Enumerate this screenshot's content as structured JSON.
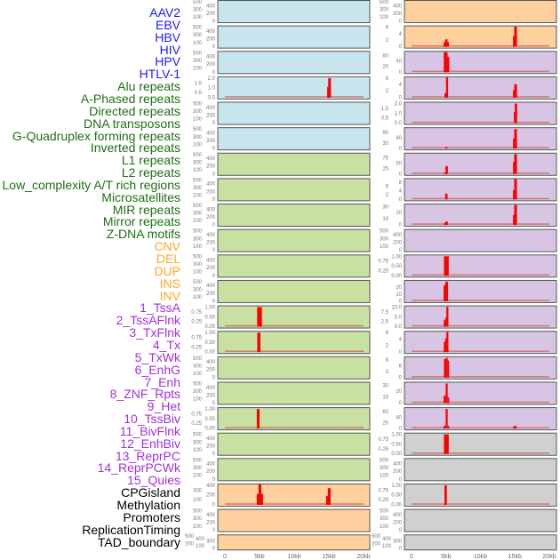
{
  "colors": {
    "virus": "#1a1aff",
    "repeat": "#1e6e14",
    "sv": "#ffa826",
    "chromhmm": "#a030e0",
    "other": "#000000",
    "bar": "#ff0000",
    "baseline": "#d06060"
  },
  "labels": [
    {
      "text": "AAV2",
      "group": "virus"
    },
    {
      "text": "EBV",
      "group": "virus"
    },
    {
      "text": "HBV",
      "group": "virus"
    },
    {
      "text": "HIV",
      "group": "virus"
    },
    {
      "text": "HPV",
      "group": "virus"
    },
    {
      "text": "HTLV-1",
      "group": "virus"
    },
    {
      "text": "Alu repeats",
      "group": "repeat"
    },
    {
      "text": "A-Phased repeats",
      "group": "repeat"
    },
    {
      "text": "Directed repeats",
      "group": "repeat"
    },
    {
      "text": "DNA transposons",
      "group": "repeat"
    },
    {
      "text": "G-Quadruplex forming repeats",
      "group": "repeat"
    },
    {
      "text": "Inverted repeats",
      "group": "repeat"
    },
    {
      "text": "L1 repeats",
      "group": "repeat"
    },
    {
      "text": "L2 repeats",
      "group": "repeat"
    },
    {
      "text": "Low_complexity A/T rich regions",
      "group": "repeat"
    },
    {
      "text": "Microsatellites",
      "group": "repeat"
    },
    {
      "text": "MIR repeats",
      "group": "repeat"
    },
    {
      "text": "Mirror repeats",
      "group": "repeat"
    },
    {
      "text": "Z-DNA motifs",
      "group": "repeat"
    },
    {
      "text": "CNV",
      "group": "sv"
    },
    {
      "text": "DEL",
      "group": "sv"
    },
    {
      "text": "DUP",
      "group": "sv"
    },
    {
      "text": "INS",
      "group": "sv"
    },
    {
      "text": "INV",
      "group": "sv"
    },
    {
      "text": "1_TssA",
      "group": "chromhmm"
    },
    {
      "text": "2_TssAFlnk",
      "group": "chromhmm"
    },
    {
      "text": "3_TxFlnk",
      "group": "chromhmm"
    },
    {
      "text": "4_Tx",
      "group": "chromhmm"
    },
    {
      "text": "5_TxWk",
      "group": "chromhmm"
    },
    {
      "text": "6_EnhG",
      "group": "chromhmm"
    },
    {
      "text": "7_Enh",
      "group": "chromhmm"
    },
    {
      "text": "8_ZNF_Rpts",
      "group": "chromhmm"
    },
    {
      "text": "9_Het",
      "group": "chromhmm"
    },
    {
      "text": "10_TssBiv",
      "group": "chromhmm"
    },
    {
      "text": "11_BivFlnk",
      "group": "chromhmm"
    },
    {
      "text": "12_EnhBiv",
      "group": "chromhmm"
    },
    {
      "text": "13_ReprPC",
      "group": "chromhmm"
    },
    {
      "text": "14_ReprPCWk",
      "group": "chromhmm"
    },
    {
      "text": "15_Quies",
      "group": "chromhmm"
    },
    {
      "text": "CPGisland",
      "group": "other"
    },
    {
      "text": "Methylation",
      "group": "other"
    },
    {
      "text": "Promoters",
      "group": "other"
    },
    {
      "text": "ReplicationTiming",
      "group": "other"
    },
    {
      "text": "TAD_boundary",
      "group": "other"
    }
  ],
  "chart_data": {
    "type": "bar",
    "xlabel": "",
    "xlim_kb": [
      -1,
      21
    ],
    "xticks": [
      "0",
      "5kb",
      "10kb",
      "15kb",
      "20kb"
    ],
    "xtick_values_kb": [
      0,
      5,
      10,
      15,
      20
    ],
    "backgrounds": {
      "blue": "#c8e4ec",
      "green": "#c8e0a2",
      "orange": "#fed09e",
      "purple": "#d7c5e3",
      "gray": "#d0d0d0"
    },
    "columns": [
      [
        {
          "bg": "blue",
          "ymax": 500,
          "yticks": [
            "0",
            "100",
            "200",
            "300",
            "400",
            "500"
          ],
          "bars": []
        },
        {
          "bg": "blue",
          "ymax": 500,
          "yticks": [
            "0",
            "100",
            "200",
            "300",
            "400",
            "500"
          ],
          "bars": []
        },
        {
          "bg": "blue",
          "ymax": 500,
          "yticks": [
            "0",
            "100",
            "200",
            "300",
            "400",
            "500"
          ],
          "bars": []
        },
        {
          "bg": "blue",
          "ymax": 2.0,
          "yticks": [
            "0.0",
            "0.5",
            "1.0",
            "1.5",
            "2.0"
          ],
          "bars": [
            [
              14.9,
              0.3,
              1.1
            ],
            [
              15.1,
              0.4,
              2.0
            ]
          ]
        },
        {
          "bg": "blue",
          "ymax": 500,
          "yticks": [
            "0",
            "100",
            "200",
            "300",
            "400",
            "500"
          ],
          "bars": []
        },
        {
          "bg": "blue",
          "ymax": 500,
          "yticks": [
            "0",
            "100",
            "200",
            "300",
            "400",
            "500"
          ],
          "bars": []
        },
        {
          "bg": "green",
          "ymax": 500,
          "yticks": [
            "0",
            "100",
            "200",
            "300",
            "400",
            "500"
          ],
          "bars": []
        },
        {
          "bg": "green",
          "ymax": 500,
          "yticks": [
            "0",
            "100",
            "200",
            "300",
            "400",
            "500"
          ],
          "bars": []
        },
        {
          "bg": "green",
          "ymax": 500,
          "yticks": [
            "0",
            "100",
            "200",
            "300",
            "400",
            "500"
          ],
          "bars": []
        },
        {
          "bg": "green",
          "ymax": 500,
          "yticks": [
            "0",
            "100",
            "200",
            "300",
            "400",
            "500"
          ],
          "bars": []
        },
        {
          "bg": "green",
          "ymax": 500,
          "yticks": [
            "0",
            "100",
            "200",
            "300",
            "400",
            "500"
          ],
          "bars": []
        },
        {
          "bg": "green",
          "ymax": 500,
          "yticks": [
            "0",
            "100",
            "200",
            "300",
            "400",
            "500"
          ],
          "bars": []
        },
        {
          "bg": "green",
          "ymax": 1.0,
          "yticks": [
            "0.00",
            "0.25",
            "0.50",
            "0.75",
            "1.00"
          ],
          "bars": [
            [
              5.0,
              0.7,
              1.0
            ]
          ]
        },
        {
          "bg": "green",
          "ymax": 1.0,
          "yticks": [
            "0.00",
            "0.25",
            "0.50",
            "0.75",
            "1.00"
          ],
          "bars": [
            [
              4.9,
              0.45,
              1.0
            ]
          ]
        },
        {
          "bg": "green",
          "ymax": 500,
          "yticks": [
            "0",
            "100",
            "200",
            "300",
            "400",
            "500"
          ],
          "bars": []
        },
        {
          "bg": "green",
          "ymax": 500,
          "yticks": [
            "0",
            "100",
            "200",
            "300",
            "400",
            "500"
          ],
          "bars": []
        },
        {
          "bg": "green",
          "ymax": 1.0,
          "yticks": [
            "0.00",
            "0.25",
            "0.50",
            "0.75",
            "1.00"
          ],
          "bars": [
            [
              4.8,
              0.4,
              1.0
            ]
          ]
        },
        {
          "bg": "green",
          "ymax": 500,
          "yticks": [
            "0",
            "100",
            "200",
            "300",
            "400",
            "500"
          ],
          "bars": []
        },
        {
          "bg": "green",
          "ymax": 500,
          "yticks": [
            "0",
            "100",
            "200",
            "300",
            "400",
            "500"
          ],
          "bars": []
        },
        {
          "bg": "orange",
          "ymax": 400,
          "yticks": [
            "0",
            "100",
            "200",
            "300",
            "400"
          ],
          "bars": [
            [
              4.75,
              0.3,
              220
            ],
            [
              5.05,
              0.4,
              420
            ],
            [
              5.35,
              0.3,
              220
            ],
            [
              14.75,
              0.3,
              180
            ],
            [
              15.05,
              0.4,
              340
            ]
          ]
        },
        {
          "bg": "orange",
          "ymax": 500,
          "yticks": [
            "0",
            "100",
            "200",
            "300",
            "400",
            "500"
          ],
          "bars": []
        },
        {
          "bg": "orange",
          "ymax": 500,
          "yticks": [
            "0",
            "100",
            "200",
            "300",
            "400",
            "500"
          ],
          "bars": []
        }
      ],
      [
        {
          "bg": "orange",
          "ymax": 500,
          "yticks": [
            "0",
            "100",
            "200",
            "300",
            "400",
            "500"
          ],
          "bars": []
        },
        {
          "bg": "orange",
          "ymax": 6,
          "yticks": [
            "0",
            "2",
            "4",
            "6"
          ],
          "bars": [
            [
              4.8,
              0.3,
              1.3
            ],
            [
              5.05,
              0.35,
              2.2
            ],
            [
              5.3,
              0.25,
              1.3
            ],
            [
              14.85,
              0.25,
              3.2
            ],
            [
              15.1,
              0.4,
              6.2
            ]
          ]
        },
        {
          "bg": "purple",
          "ymax": 70,
          "yticks": [
            "0",
            "20",
            "40",
            "60"
          ],
          "bars": [
            [
              4.95,
              0.55,
              72
            ],
            [
              5.35,
              0.25,
              55
            ]
          ]
        },
        {
          "bg": "purple",
          "ymax": 6,
          "yticks": [
            "0",
            "2",
            "4",
            "6"
          ],
          "bars": [
            [
              4.9,
              0.25,
              1.3
            ],
            [
              5.15,
              0.3,
              6.2
            ],
            [
              14.85,
              0.25,
              2.2
            ],
            [
              15.1,
              0.4,
              4.1
            ]
          ]
        },
        {
          "bg": "purple",
          "ymax": 2.0,
          "yticks": [
            "0.0",
            "0.5",
            "1.0",
            "1.5",
            "2.0"
          ],
          "bars": [
            [
              14.95,
              0.2,
              1.1
            ],
            [
              15.15,
              0.35,
              2.0
            ]
          ]
        },
        {
          "bg": "purple",
          "ymax": 110,
          "yticks": [
            "0",
            "30",
            "60",
            "90"
          ],
          "bars": [
            [
              5.05,
              0.35,
              7
            ],
            [
              14.85,
              0.25,
              55
            ],
            [
              15.1,
              0.4,
              110
            ]
          ]
        },
        {
          "bg": "purple",
          "ymax": 90,
          "yticks": [
            "0",
            "25",
            "50",
            "75"
          ],
          "bars": [
            [
              4.85,
              0.3,
              5
            ],
            [
              5.1,
              0.35,
              35
            ],
            [
              14.85,
              0.25,
              55
            ],
            [
              15.1,
              0.4,
              92
            ]
          ]
        },
        {
          "bg": "purple",
          "ymax": 9,
          "yticks": [
            "0",
            "2",
            "4",
            "6",
            "8"
          ],
          "bars": [
            [
              5.05,
              0.35,
              2.5
            ],
            [
              14.85,
              0.25,
              4.3
            ],
            [
              15.1,
              0.4,
              9.5
            ]
          ]
        },
        {
          "bg": "purple",
          "ymax": 32,
          "yticks": [
            "0",
            "10",
            "20",
            "30"
          ],
          "bars": [
            [
              4.85,
              0.3,
              2.5
            ],
            [
              5.1,
              0.35,
              5
            ],
            [
              14.85,
              0.25,
              16
            ],
            [
              15.1,
              0.4,
              33
            ]
          ]
        },
        {
          "bg": "purple",
          "ymax": 500,
          "yticks": [
            "0",
            "100",
            "200",
            "300",
            "400",
            "500"
          ],
          "bars": []
        },
        {
          "bg": "purple",
          "ymax": 1.0,
          "yticks": [
            "0.00",
            "0.25",
            "0.50",
            "0.75",
            "1.00"
          ],
          "bars": [
            [
              5.05,
              0.7,
              1.0
            ]
          ]
        },
        {
          "bg": "purple",
          "ymax": 28,
          "yticks": [
            "0",
            "10",
            "20"
          ],
          "bars": [
            [
              4.8,
              0.3,
              23
            ],
            [
              5.1,
              0.4,
              28
            ]
          ]
        },
        {
          "bg": "purple",
          "ymax": 10,
          "yticks": [
            "0.0",
            "2.5",
            "5.0",
            "7.5",
            "10.0"
          ],
          "bars": [
            [
              4.8,
              0.25,
              3.2
            ],
            [
              5.0,
              0.25,
              4.5
            ],
            [
              5.2,
              0.3,
              10.2
            ]
          ]
        },
        {
          "bg": "purple",
          "ymax": 6,
          "yticks": [
            "0",
            "2",
            "4",
            "6"
          ],
          "bars": [
            [
              4.8,
              0.25,
              3.1
            ],
            [
              5.0,
              0.25,
              4.2
            ],
            [
              5.2,
              0.3,
              6.2
            ]
          ]
        },
        {
          "bg": "purple",
          "ymax": 10,
          "yticks": [
            "0",
            "3",
            "6",
            "9"
          ],
          "bars": [
            [
              4.85,
              0.3,
              9.5
            ],
            [
              5.1,
              0.3,
              10
            ],
            [
              5.35,
              0.2,
              8.7
            ]
          ]
        },
        {
          "bg": "purple",
          "ymax": 33,
          "yticks": [
            "0",
            "10",
            "20",
            "30"
          ],
          "bars": [
            [
              4.8,
              0.3,
              12
            ],
            [
              5.1,
              0.3,
              33
            ],
            [
              5.35,
              0.2,
              9
            ]
          ]
        },
        {
          "bg": "purple",
          "ymax": 70,
          "yticks": [
            "0",
            "20",
            "40",
            "60"
          ],
          "bars": [
            [
              4.8,
              0.3,
              8
            ],
            [
              5.1,
              0.3,
              70
            ],
            [
              5.35,
              0.2,
              8
            ],
            [
              14.85,
              0.25,
              6
            ],
            [
              15.1,
              0.3,
              8
            ]
          ]
        },
        {
          "bg": "gray",
          "ymax": 1.0,
          "yticks": [
            "0.00",
            "0.25",
            "0.50",
            "0.75",
            "1.00"
          ],
          "bars": [
            [
              5.05,
              0.7,
              1.0
            ]
          ]
        },
        {
          "bg": "gray",
          "ymax": 500,
          "yticks": [
            "0",
            "100",
            "200",
            "300",
            "400",
            "500"
          ],
          "bars": []
        },
        {
          "bg": "gray",
          "ymax": 1.0,
          "yticks": [
            "0.00",
            "0.25",
            "0.50",
            "0.75",
            "1.00"
          ],
          "bars": [
            [
              4.95,
              0.35,
              1.0
            ]
          ]
        },
        {
          "bg": "gray",
          "ymax": 500,
          "yticks": [
            "0",
            "100",
            "200",
            "300",
            "400",
            "500"
          ],
          "bars": []
        },
        {
          "bg": "gray",
          "ymax": 500,
          "yticks": [
            "0",
            "100",
            "200",
            "300",
            "400",
            "500"
          ],
          "bars": []
        }
      ]
    ]
  }
}
